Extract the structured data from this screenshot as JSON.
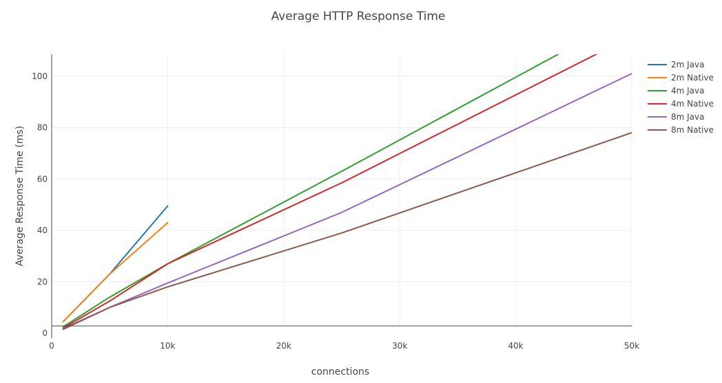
{
  "chart_data": {
    "type": "line",
    "title": "Average HTTP Response Time",
    "xlabel": "connections",
    "ylabel": "Average Response Time (ms)",
    "xlim": [
      0,
      50000
    ],
    "ylim": [
      -2,
      108.5
    ],
    "x_ticks": [
      0,
      10000,
      20000,
      30000,
      40000,
      50000
    ],
    "x_tick_labels": [
      "0",
      "10k",
      "20k",
      "30k",
      "40k",
      "50k"
    ],
    "y_ticks": [
      0,
      20,
      40,
      60,
      80,
      100
    ],
    "y_tick_labels": [
      "0",
      "20",
      "40",
      "60",
      "80",
      "100"
    ],
    "grid": true,
    "legend_position": "right",
    "series": [
      {
        "name": "2m Java",
        "color": "#1f77b4",
        "x": [
          1000,
          5000,
          10000
        ],
        "y": [
          4.5,
          23,
          49.5
        ]
      },
      {
        "name": "2m Native",
        "color": "#ff7f0e",
        "x": [
          1000,
          5000,
          10000
        ],
        "y": [
          4.5,
          23,
          43
        ]
      },
      {
        "name": "4m Java",
        "color": "#2ca02c",
        "x": [
          1000,
          5000,
          10000,
          25000,
          50000
        ],
        "y": [
          2.5,
          14,
          27,
          63,
          124
        ]
      },
      {
        "name": "4m Native",
        "color": "#d62728",
        "x": [
          1000,
          5000,
          10000,
          25000,
          50000
        ],
        "y": [
          2,
          12.5,
          27,
          58.5,
          115.5
        ]
      },
      {
        "name": "8m Java",
        "color": "#9467bd",
        "x": [
          1000,
          5000,
          10000,
          25000,
          50000
        ],
        "y": [
          1.8,
          10,
          19.5,
          47,
          101
        ]
      },
      {
        "name": "8m Native",
        "color": "#8c564b",
        "x": [
          1000,
          5000,
          10000,
          25000,
          50000
        ],
        "y": [
          1.5,
          10,
          18,
          39,
          78
        ]
      }
    ]
  }
}
